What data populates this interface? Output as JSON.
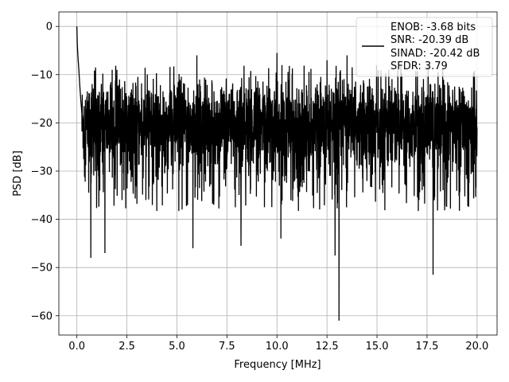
{
  "chart_data": {
    "type": "line",
    "title": "",
    "xlabel": "Frequency [MHz]",
    "ylabel": "PSD [dB]",
    "xlim": [
      -0.9,
      21.0
    ],
    "ylim": [
      -64,
      3
    ],
    "xticks": [
      0.0,
      2.5,
      5.0,
      7.5,
      10.0,
      12.5,
      15.0,
      17.5,
      20.0
    ],
    "xtick_labels": [
      "0.0",
      "2.5",
      "5.0",
      "7.5",
      "10.0",
      "12.5",
      "15.0",
      "17.5",
      "20.0"
    ],
    "yticks": [
      0,
      -10,
      -20,
      -30,
      -40,
      -50,
      -60
    ],
    "ytick_labels": [
      "0",
      "−10",
      "−20",
      "−30",
      "−40",
      "−50",
      "−60"
    ],
    "grid": true,
    "legend_position": "top-right",
    "series": [
      {
        "name": "ENOB: -3.68 bits\nSNR: -20.39 dB\nSINAD: -20.42 dB\nSFDR: 3.79",
        "legend_lines": [
          "ENOB: -3.68 bits",
          "SNR: -20.39 dB",
          "SINAD: -20.42 dB",
          "SFDR: 3.79"
        ],
        "color": "#000000",
        "x_start": 0.0,
        "x_end": 20.0,
        "initial_decay": [
          [
            0.0,
            0.0
          ],
          [
            0.02,
            -3.5
          ],
          [
            0.05,
            -6.0
          ],
          [
            0.1,
            -9.0
          ],
          [
            0.15,
            -12.5
          ],
          [
            0.2,
            -15.5
          ],
          [
            0.25,
            -18.0
          ]
        ],
        "noise_floor_mean": -20.4,
        "noise_band_upper": -10,
        "noise_band_lower": -33,
        "peaks": [
          [
            2.0,
            -9.0
          ],
          [
            6.0,
            -6.0
          ],
          [
            10.0,
            -5.5
          ],
          [
            12.5,
            -7.0
          ],
          [
            13.5,
            -6.0
          ]
        ],
        "dips": [
          [
            0.7,
            -48.0
          ],
          [
            1.4,
            -47.0
          ],
          [
            5.8,
            -46.0
          ],
          [
            8.2,
            -45.5
          ],
          [
            10.2,
            -44.0
          ],
          [
            13.1,
            -61.0
          ],
          [
            17.8,
            -51.5
          ],
          [
            12.9,
            -47.5
          ]
        ]
      }
    ]
  }
}
